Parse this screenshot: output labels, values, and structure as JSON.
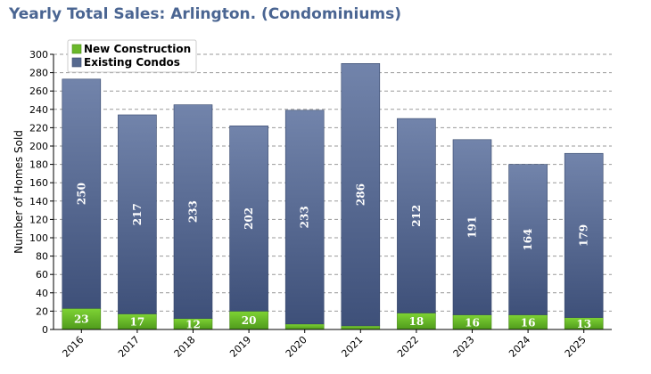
{
  "chart_data": {
    "type": "bar",
    "stacked": true,
    "title": "Yearly Total Sales: Arlington. (Condominiums)",
    "xlabel": "",
    "ylabel": "Number of Homes Sold",
    "ylim": [
      0,
      300
    ],
    "ytick_step": 20,
    "grid": true,
    "legend_position": "top-left",
    "categories": [
      "2016",
      "2017",
      "2018",
      "2019",
      "2020",
      "2021",
      "2022",
      "2023",
      "2024",
      "2025"
    ],
    "series": [
      {
        "name": "New Construction",
        "color": "#6ab82a",
        "values": [
          23,
          17,
          12,
          20,
          6,
          4,
          18,
          16,
          16,
          13
        ],
        "data_labels": [
          "23",
          "17",
          "12",
          "20",
          "",
          "",
          "18",
          "16",
          "16",
          "13"
        ]
      },
      {
        "name": "Existing Condos",
        "color": "#56698f",
        "values": [
          250,
          217,
          233,
          202,
          233,
          286,
          212,
          191,
          164,
          179
        ],
        "data_labels": [
          "250",
          "217",
          "233",
          "202",
          "233",
          "286",
          "212",
          "191",
          "164",
          "179"
        ]
      }
    ]
  }
}
